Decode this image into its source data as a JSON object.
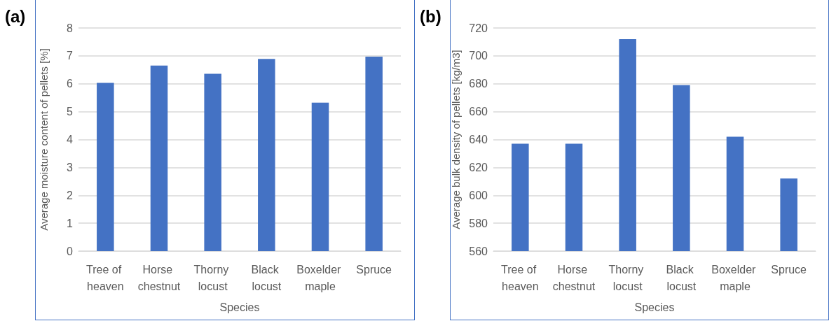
{
  "chart_data": [
    {
      "type": "bar",
      "title": "(a)",
      "xlabel": "Species",
      "ylabel": "Average moisture content of pellets [%]",
      "categories": [
        "Tree of heaven",
        "Horse chestnut",
        "Thorny locust",
        "Black locust",
        "Boxelder maple",
        "Spruce"
      ],
      "values": [
        6.03,
        6.65,
        6.36,
        6.89,
        5.32,
        6.97
      ],
      "color": "#4472c4",
      "ylim": [
        0,
        8
      ],
      "yticks": [
        0,
        1,
        2,
        3,
        4,
        5,
        6,
        7,
        8
      ],
      "grid": "y"
    },
    {
      "type": "bar",
      "title": "(b)",
      "xlabel": "Species",
      "ylabel": "Average bulk density of pellets [kg/m3]",
      "categories": [
        "Tree of heaven",
        "Horse chestnut",
        "Thorny locust",
        "Black locust",
        "Boxelder maple",
        "Spruce"
      ],
      "values": [
        637,
        637,
        712,
        679,
        642,
        612
      ],
      "color": "#4472c4",
      "ylim": [
        560,
        720
      ],
      "yticks": [
        560,
        580,
        600,
        620,
        640,
        660,
        680,
        700,
        720
      ],
      "grid": "y"
    }
  ]
}
